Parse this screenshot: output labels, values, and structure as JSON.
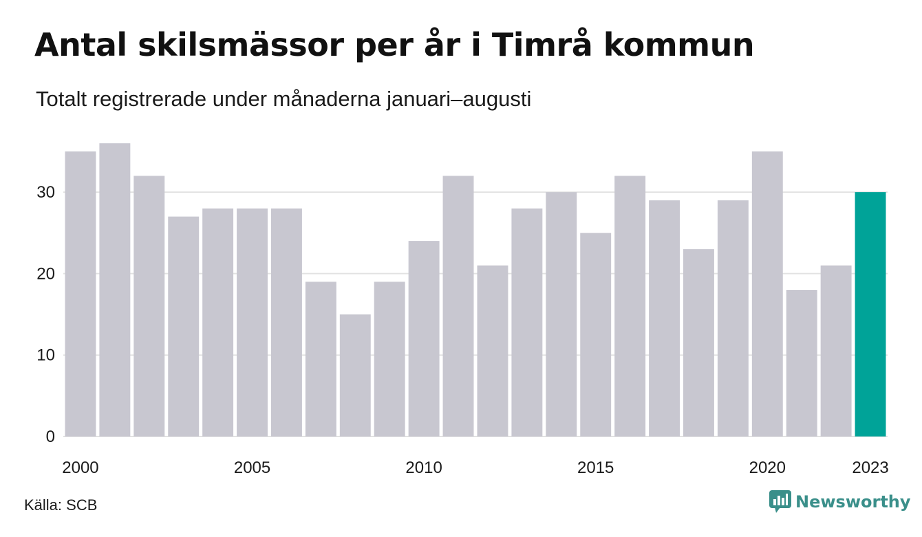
{
  "header": {
    "title": "Antal skilsmässor per år i Timrå kommun",
    "subtitle": "Totalt registrerade under månaderna januari–augusti"
  },
  "footer": {
    "source": "Källa: SCB",
    "brand": "Newsworthy",
    "brand_icon": "newsworthy-logo-icon"
  },
  "colors": {
    "bar": "#c8c7d0",
    "highlight": "#00a398",
    "grid": "#e2e2e2",
    "brand": "#3a8f8a"
  },
  "chart_data": {
    "type": "bar",
    "title": "Antal skilsmässor per år i Timrå kommun",
    "subtitle": "Totalt registrerade under månaderna januari–augusti",
    "categories": [
      "2000",
      "2001",
      "2002",
      "2003",
      "2004",
      "2005",
      "2006",
      "2007",
      "2008",
      "2009",
      "2010",
      "2011",
      "2012",
      "2013",
      "2014",
      "2015",
      "2016",
      "2017",
      "2018",
      "2019",
      "2020",
      "2021",
      "2022",
      "2023"
    ],
    "values": [
      35,
      36,
      32,
      27,
      28,
      28,
      28,
      19,
      15,
      19,
      24,
      32,
      21,
      28,
      30,
      25,
      32,
      29,
      23,
      29,
      35,
      18,
      21,
      30
    ],
    "highlight_category": "2023",
    "x_tick_labels": [
      "2000",
      "2005",
      "2010",
      "2015",
      "2020",
      "2023"
    ],
    "y_ticks": [
      0,
      10,
      20,
      30
    ],
    "ylim": [
      0,
      36
    ],
    "xlabel": "",
    "ylabel": "",
    "grid": "horizontal",
    "legend": "none"
  }
}
